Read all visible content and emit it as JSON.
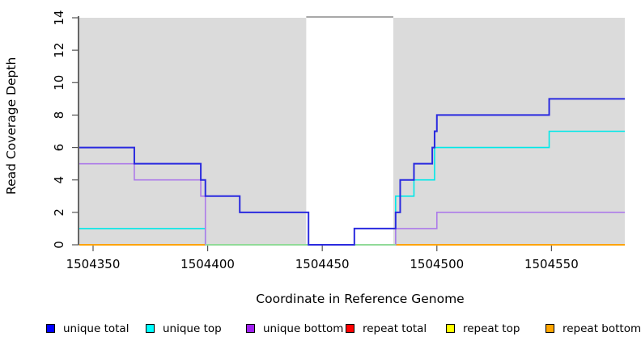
{
  "chart_data": {
    "type": "line",
    "subtype": "step-coverage",
    "title": "",
    "xlabel": "Coordinate in Reference Genome",
    "ylabel": "Read Coverage Depth",
    "xlim": [
      1504344,
      1504582
    ],
    "ylim": [
      0,
      14
    ],
    "x_ticks": [
      1504350,
      1504400,
      1504450,
      1504500,
      1504550
    ],
    "y_ticks": [
      0,
      2,
      4,
      6,
      8,
      10,
      12,
      14
    ],
    "grid": "off",
    "legend_position": "bottom",
    "background": {
      "plot_color": "#DBDBDB",
      "white_region": {
        "from": 1504443,
        "to": 1504481,
        "top_border_color": "#8C8C8C"
      }
    },
    "series": [
      {
        "name": "unique total",
        "color": "#2A2ADF",
        "width": 2,
        "steps": [
          [
            1504344,
            6
          ],
          [
            1504368,
            5
          ],
          [
            1504397,
            4
          ],
          [
            1504399,
            3
          ],
          [
            1504414,
            2
          ],
          [
            1504444,
            0
          ],
          [
            1504464,
            1
          ],
          [
            1504482,
            2
          ],
          [
            1504484,
            4
          ],
          [
            1504490,
            5
          ],
          [
            1504498,
            6
          ],
          [
            1504499,
            7
          ],
          [
            1504500,
            8
          ],
          [
            1504549,
            9
          ]
        ]
      },
      {
        "name": "unique top",
        "color": "#00E8E8",
        "width": 1.6,
        "steps": [
          [
            1504344,
            1
          ],
          [
            1504399,
            0
          ],
          [
            1504482,
            3
          ],
          [
            1504490,
            4
          ],
          [
            1504499,
            6
          ],
          [
            1504549,
            7
          ]
        ]
      },
      {
        "name": "unique bottom",
        "color": "#AD7BE9",
        "width": 1.6,
        "steps": [
          [
            1504344,
            5
          ],
          [
            1504368,
            4
          ],
          [
            1504397,
            3
          ],
          [
            1504399,
            0
          ],
          [
            1504482,
            1
          ],
          [
            1504500,
            2
          ]
        ]
      },
      {
        "name": "repeat total",
        "color": "#DD0000",
        "width": 1.6,
        "steps": [
          [
            1504344,
            0
          ]
        ]
      },
      {
        "name": "repeat top",
        "color": "#EEEE00",
        "width": 1.6,
        "steps": [
          [
            1504344,
            0
          ]
        ]
      },
      {
        "name": "repeat bottom",
        "color": "#FFA200",
        "width": 1.8,
        "steps": [
          [
            1504344,
            0
          ]
        ]
      }
    ],
    "unlabeled_zero_segment": {
      "color": "#90EE90",
      "value": 0,
      "from": 1504399,
      "to": 1504482,
      "width": 1.6
    },
    "legend": [
      {
        "label": "unique total",
        "color": "#0000FF"
      },
      {
        "label": "unique top",
        "color": "#00FFFF"
      },
      {
        "label": "unique bottom",
        "color": "#A020F0"
      },
      {
        "label": "repeat total",
        "color": "#FF0000"
      },
      {
        "label": "repeat top",
        "color": "#FFFF00"
      },
      {
        "label": "repeat bottom",
        "color": "#FFA500"
      }
    ]
  }
}
